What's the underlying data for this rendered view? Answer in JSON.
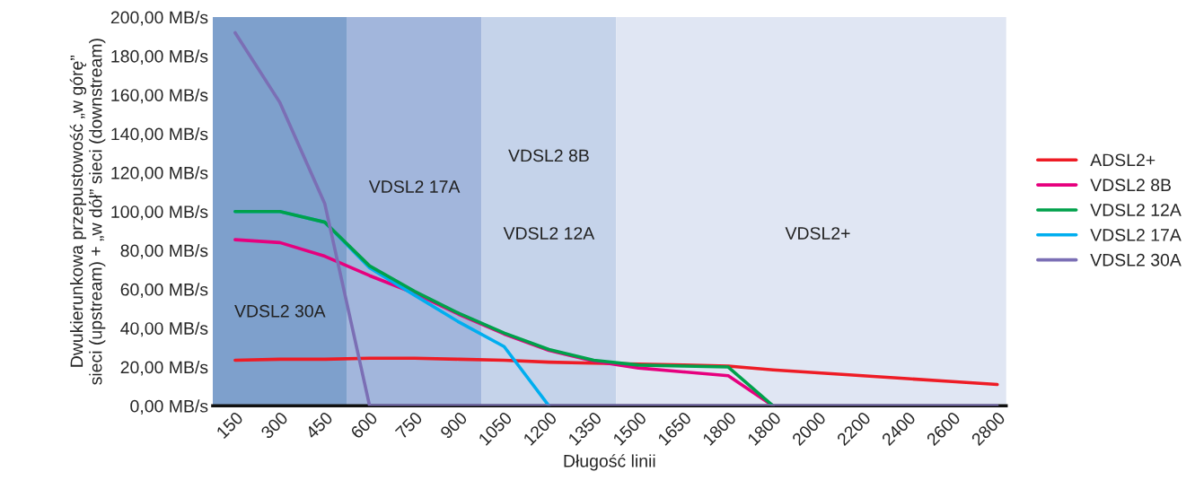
{
  "chart_data": {
    "type": "line",
    "xlabel": "Długość linii",
    "ylabel": "Dwukierunkowa przepustowość „w górę”\nsieci (upstream) + „w dół” sieci (downstream)",
    "categories": [
      "150",
      "300",
      "450",
      "600",
      "750",
      "900",
      "1050",
      "1200",
      "1350",
      "1500",
      "1650",
      "1800",
      "1800",
      "2000",
      "2200",
      "2400",
      "2600",
      "2800"
    ],
    "series": [
      {
        "name": "ADSL2+",
        "color": "#ee1c25",
        "values": [
          23.5,
          24,
          24,
          24.5,
          24.5,
          24,
          23.5,
          22.5,
          22,
          21.5,
          21,
          20.5,
          18.5,
          17,
          15.5,
          14,
          12.5,
          11
        ]
      },
      {
        "name": "VDSL2 8B",
        "color": "#e6007e",
        "values": [
          85.5,
          84,
          77,
          67,
          58,
          47,
          37,
          28.5,
          23,
          19.5,
          17.5,
          15.5,
          0,
          null,
          null,
          null,
          null,
          null
        ]
      },
      {
        "name": "VDSL2 12A",
        "color": "#00a14b",
        "values": [
          100,
          100,
          94.5,
          72,
          59,
          47.5,
          37.5,
          29,
          23.5,
          21,
          20.5,
          20,
          0,
          null,
          null,
          null,
          null,
          null
        ]
      },
      {
        "name": "VDSL2 17A",
        "color": "#00aeef",
        "values": [
          100,
          100,
          94.5,
          71,
          57,
          43,
          30.5,
          0,
          null,
          null,
          null,
          null,
          null,
          null,
          null,
          null,
          null,
          null
        ]
      },
      {
        "name": "VDSL2 30A",
        "color": "#7b6fb5",
        "values": [
          192,
          156,
          104,
          0,
          0,
          0,
          0,
          0,
          0,
          0,
          0,
          0,
          0,
          0,
          0,
          0,
          0,
          0
        ]
      }
    ],
    "bands": [
      {
        "axis": "x",
        "from": "150",
        "to": "450",
        "label": "VDSL2 30A",
        "color": "#7ea0cc"
      },
      {
        "axis": "x",
        "from": "600",
        "to": "900",
        "label": "VDSL2 17A",
        "color": "#a2b6dc"
      },
      {
        "axis": "x",
        "from": "1050",
        "to": "1350",
        "label": "VDSL2 12A",
        "color": "#c5d3ea"
      },
      {
        "axis": "x",
        "from": "1500",
        "to": "2800",
        "label": "VDSL2+",
        "color": "#e0e6f3"
      }
    ],
    "annotations": [
      "VDSL2 8B"
    ],
    "ylim": [
      0,
      200
    ],
    "yticks": [
      {
        "value": 0,
        "label": "0,00 MB/s"
      },
      {
        "value": 20,
        "label": "20,00 MB/s"
      },
      {
        "value": 40,
        "label": "40,00 MB/s"
      },
      {
        "value": 60,
        "label": "60,00 MB/s"
      },
      {
        "value": 80,
        "label": "80,00 MB/s"
      },
      {
        "value": 100,
        "label": "100,00 MB/s"
      },
      {
        "value": 120,
        "label": "120,00 MB/s"
      },
      {
        "value": 140,
        "label": "140,00 MB/s"
      },
      {
        "value": 160,
        "label": "160,00 MB/s"
      },
      {
        "value": 180,
        "label": "180,00 MB/s"
      },
      {
        "value": 200,
        "label": "200,00 MB/s"
      }
    ],
    "grid": false,
    "legend": "right",
    "marker": "none",
    "line_style": "solid"
  }
}
